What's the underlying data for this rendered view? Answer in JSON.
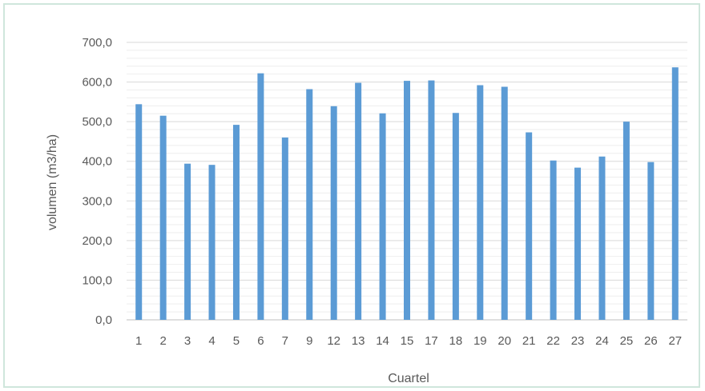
{
  "chart_data": {
    "type": "bar",
    "categories": [
      "1",
      "2",
      "3",
      "4",
      "5",
      "6",
      "7",
      "9",
      "12",
      "13",
      "14",
      "15",
      "17",
      "18",
      "19",
      "20",
      "21",
      "22",
      "23",
      "24",
      "25",
      "26",
      "27"
    ],
    "values": [
      544,
      515,
      394,
      391,
      492,
      622,
      460,
      582,
      539,
      598,
      521,
      603,
      604,
      522,
      592,
      588,
      473,
      402,
      384,
      412,
      500,
      398,
      637
    ],
    "xlabel": "Cuartel",
    "ylabel": "volumen (m3/ha)",
    "ylim": [
      0,
      700
    ],
    "yticks": [
      "0,0",
      "100,0",
      "200,0",
      "300,0",
      "400,0",
      "500,0",
      "600,0",
      "700,0"
    ],
    "grid": "horizontal major and minor",
    "legend": "none",
    "colors": {
      "bar": "#5b9bd5",
      "major_grid": "#d9d9d9",
      "minor_grid": "#eeeeee",
      "frame_border": "#cfe6dc",
      "text": "#595959"
    }
  }
}
